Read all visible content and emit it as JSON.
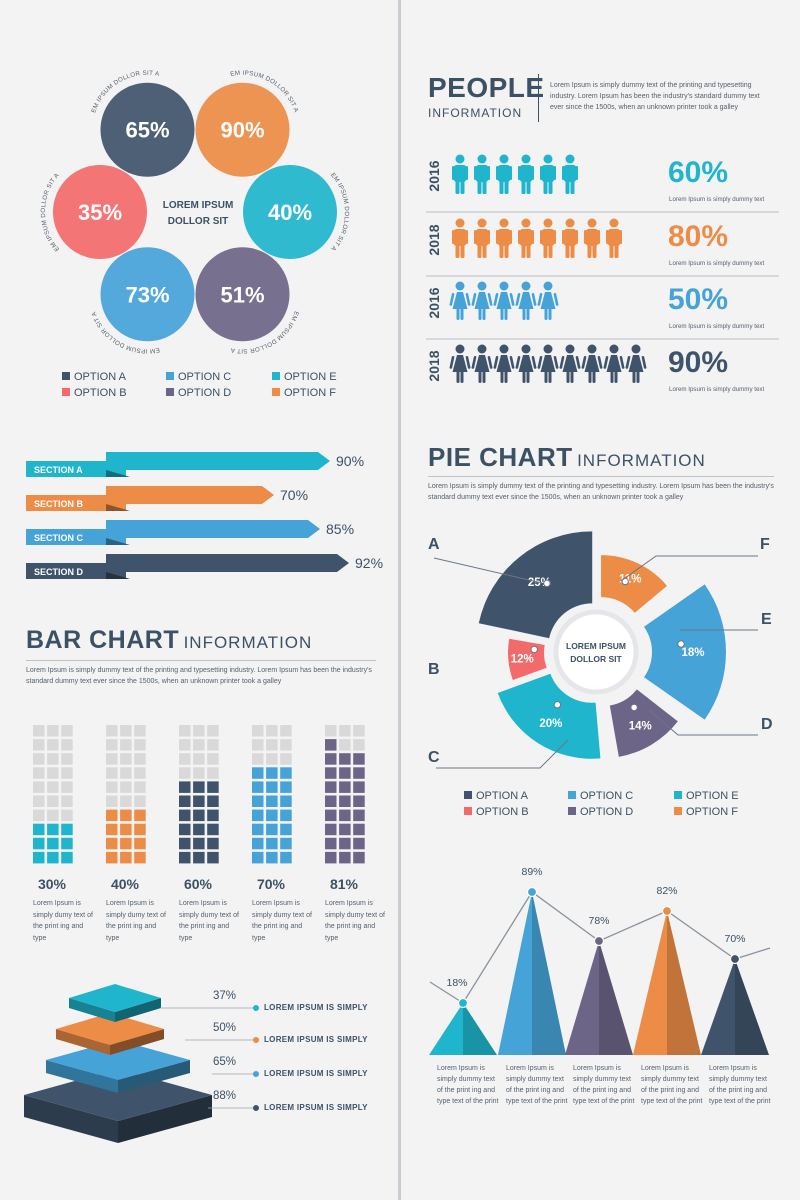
{
  "colors": {
    "dark": "#3f546b",
    "orange": "#ec8c46",
    "red": "#f26a6a",
    "cyan": "#1fb5cc",
    "blue": "#46a3d8",
    "purple": "#6d6587",
    "gray": "#d9d9d9"
  },
  "legend": [
    {
      "label": "OPTION A",
      "color": "#3f546b"
    },
    {
      "label": "OPTION C",
      "color": "#46a3d8"
    },
    {
      "label": "OPTION E",
      "color": "#1fb5cc"
    },
    {
      "label": "OPTION B",
      "color": "#f26a6a"
    },
    {
      "label": "OPTION D",
      "color": "#6d6587"
    },
    {
      "label": "OPTION F",
      "color": "#ec8c46"
    }
  ],
  "circles": {
    "center_label": [
      "LOREM IPSUM",
      "DOLLOR SIT"
    ],
    "arc_text": "LOREM IPSUM DOLLOR SIT AMET",
    "chart_data": {
      "type": "venn-circles",
      "items": [
        {
          "label": "65%",
          "value": 65,
          "color": "#3f546b"
        },
        {
          "label": "90%",
          "value": 90,
          "color": "#ec8c46"
        },
        {
          "label": "40%",
          "value": 40,
          "color": "#1fb5cc"
        },
        {
          "label": "51%",
          "value": 51,
          "color": "#6d6587"
        },
        {
          "label": "73%",
          "value": 73,
          "color": "#46a3d8"
        },
        {
          "label": "35%",
          "value": 35,
          "color": "#f26a6a"
        }
      ]
    }
  },
  "sections": {
    "chart_data": {
      "type": "bar",
      "orientation": "horizontal",
      "categories": [
        "SECTION A",
        "SECTION B",
        "SECTION C",
        "SECTION D"
      ],
      "values": [
        90,
        70,
        85,
        92
      ],
      "labels": [
        "90%",
        "70%",
        "85%",
        "92%"
      ],
      "colors": [
        "#1fb5cc",
        "#ec8c46",
        "#46a3d8",
        "#3f546b"
      ]
    }
  },
  "bar_chart": {
    "title": "BAR CHART",
    "subtitle": "INFORMATION",
    "description": "Lorem Ipsum is simply dummy text of the printing and typesetting industry. Lorem Ipsum has been the industry's standard dummy text ever since the 1500s, when an unknown printer took a galley",
    "chart_data": {
      "type": "bar",
      "style": "waffle-columns",
      "values": [
        30,
        40,
        60,
        70,
        81
      ],
      "labels": [
        "30%",
        "40%",
        "60%",
        "70%",
        "81%"
      ],
      "colors": [
        "#1fb5cc",
        "#ec8c46",
        "#3f546b",
        "#46a3d8",
        "#6d6587"
      ],
      "descriptions": [
        "Lorem Ipsum is simply dumy text of the print ing and type",
        "Lorem Ipsum is simply dumy text of the print ing and type",
        "Lorem Ipsum is simply dumy text of the print ing and type",
        "Lorem Ipsum is simply dumy text of the print ing and type",
        "Lorem Ipsum is simply dumy text of the print ing and type"
      ]
    }
  },
  "layers": {
    "chart_data": {
      "type": "stacked-layers",
      "values": [
        37,
        50,
        65,
        88
      ],
      "labels": [
        "37%",
        "50%",
        "65%",
        "88%"
      ],
      "texts": [
        "LOREM IPSUM IS SIMPLY",
        "LOREM IPSUM IS SIMPLY",
        "LOREM IPSUM IS SIMPLY",
        "LOREM IPSUM IS SIMPLY"
      ],
      "colors": [
        "#1fb5cc",
        "#ec8c46",
        "#46a3d8",
        "#3f546b"
      ]
    }
  },
  "people": {
    "title": "PEOPLE",
    "subtitle": "INFORMATION",
    "description": "Lorem Ipsum is simply dummy text of the printing and typesetting industry. Lorem Ipsum has been the industry's standard dummy text ever since the 1500s, when an unknown printer took a galley",
    "rows": [
      {
        "year": "2016",
        "count": 6,
        "kind": "man",
        "pct": "60%",
        "color": "#1fb5cc",
        "note": "Lorem Ipsum is simply dummy text"
      },
      {
        "year": "2018",
        "count": 8,
        "kind": "man",
        "pct": "80%",
        "color": "#ec8c46",
        "note": "Lorem Ipsum is simply dummy text"
      },
      {
        "year": "2016",
        "count": 5,
        "kind": "woman",
        "pct": "50%",
        "color": "#46a3d8",
        "note": "Lorem Ipsum is simply dummy text"
      },
      {
        "year": "2018",
        "count": 9,
        "kind": "woman",
        "pct": "90%",
        "color": "#3f546b",
        "note": "Lorem Ipsum is simply dummy text"
      }
    ]
  },
  "pie": {
    "title": "PIE CHART",
    "subtitle": "INFORMATION",
    "description": "Lorem Ipsum is simply dummy text of the printing and typesetting industry. Lorem Ipsum has been the industry's standard dummy text ever since the 1500s, when an unknown printer took a galley",
    "center_label": [
      "LOREM IPSUM",
      "DOLLOR SIT"
    ],
    "chart_data": {
      "type": "pie",
      "style": "exploded-donut",
      "slices": [
        {
          "letter": "A",
          "value": 25,
          "label": "25%",
          "color": "#3f546b"
        },
        {
          "letter": "F",
          "value": 11,
          "label": "11%",
          "color": "#ec8c46"
        },
        {
          "letter": "E",
          "value": 18,
          "label": "18%",
          "color": "#46a3d8"
        },
        {
          "letter": "D",
          "value": 14,
          "label": "14%",
          "color": "#6d6587"
        },
        {
          "letter": "C",
          "value": 20,
          "label": "20%",
          "color": "#1fb5cc"
        },
        {
          "letter": "B",
          "value": 12,
          "label": "12%",
          "color": "#f26a6a"
        }
      ]
    }
  },
  "triangles": {
    "chart_data": {
      "type": "line",
      "style": "triangle-columns",
      "values": [
        18,
        89,
        78,
        82,
        70
      ],
      "labels": [
        "18%",
        "89%",
        "78%",
        "82%",
        "70%"
      ],
      "colors": [
        "#1fb5cc",
        "#46a3d8",
        "#6d6587",
        "#ec8c46",
        "#3f546b"
      ],
      "descriptions": [
        "Lorem Ipsum is simply dummy text of the print ing and type text of the print",
        "Lorem Ipsum is simply dummy text of the print ing and type text of the print",
        "Lorem Ipsum is simply dummy text of the print ing and type text of the print",
        "Lorem Ipsum is simply dummy text of the print ing and type text of the print",
        "Lorem Ipsum is simply dummy text of the print ing and type text of the print"
      ]
    }
  }
}
